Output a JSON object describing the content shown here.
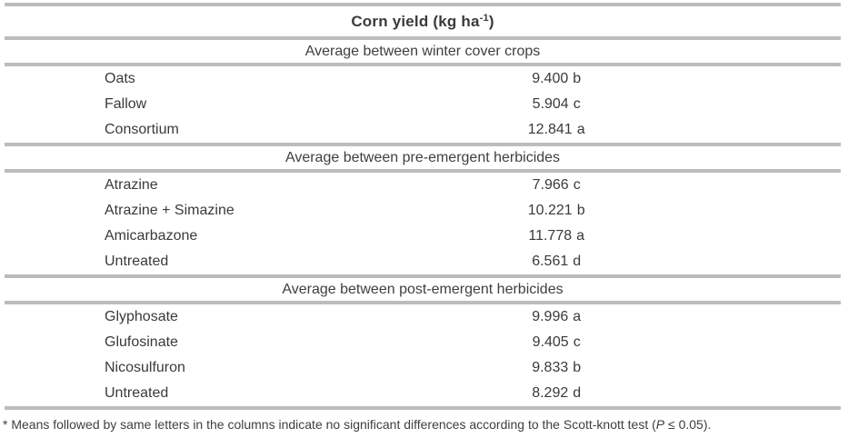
{
  "table": {
    "title": {
      "pre": "Corn yield (kg ha",
      "sup": "-1",
      "post": ")"
    },
    "sections": [
      {
        "header": "Average between winter cover crops",
        "rows": [
          {
            "label": "Oats",
            "value": "9.400",
            "letter": "b"
          },
          {
            "label": "Fallow",
            "value": "5.904",
            "letter": "c"
          },
          {
            "label": "Consortium",
            "value": "12.841",
            "letter": "a"
          }
        ]
      },
      {
        "header": "Average between pre-emergent herbicides",
        "rows": [
          {
            "label": "Atrazine",
            "value": "7.966",
            "letter": "c"
          },
          {
            "label": "Atrazine + Simazine",
            "value": "10.221",
            "letter": "b"
          },
          {
            "label": "Amicarbazone",
            "value": "11.778",
            "letter": "a"
          },
          {
            "label": "Untreated",
            "value": "6.561",
            "letter": "d"
          }
        ]
      },
      {
        "header": "Average between post-emergent herbicides",
        "rows": [
          {
            "label": "Glyphosate",
            "value": "9.996",
            "letter": "a"
          },
          {
            "label": "Glufosinate",
            "value": "9.405",
            "letter": "c"
          },
          {
            "label": "Nicosulfuron",
            "value": "9.833",
            "letter": "b"
          },
          {
            "label": "Untreated",
            "value": "8.292",
            "letter": "d"
          }
        ]
      }
    ],
    "footnote": {
      "pre": "* Means followed by same letters in the columns indicate no significant differences according to the Scott-knott test (",
      "italic": "P",
      "post": " ≤ 0.05)."
    }
  },
  "colors": {
    "rule": "#bcbcbc",
    "text": "#3a3a3a",
    "background": "#ffffff"
  }
}
